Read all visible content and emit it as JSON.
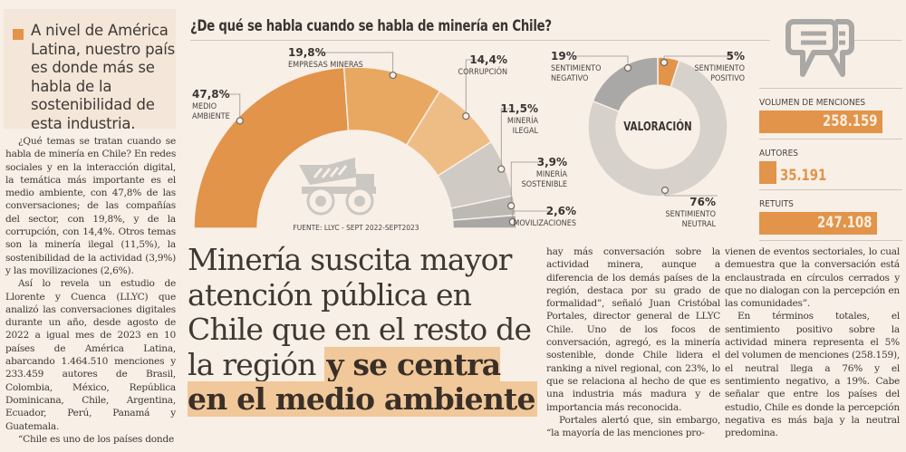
{
  "callout": {
    "text": "A nivel de América Latina, nuestro país es donde más se habla de la sostenibilidad de esta industria."
  },
  "article": {
    "left_paragraphs": [
      "¿Qué temas se tratan cuando se habla de minería en Chile? En redes sociales y en la interacción digital, la temática más importante es el medio ambiente, con 47,8% de las conversaciones; de las compañías del sector, con 19,8%, y de la corrupción, con 14,4%. Otros temas son la minería ilegal (11,5%), la sostenibilidad de la actividad (3,9%) y las movilizaciones (2,6%).",
      "Así lo revela un estudio de Llorente y Cuenca (LLYC) que analizó las conversaciones digitales durante un año, desde agosto de 2022 a igual mes de 2023 en 10 países de América Latina, abarcando 1.464.510 menciones y 233.459 autores de Brasil, Colombia, México, República Dominicana, Chile, Argentina, Ecuador, Perú, Panamá y Guatemala.",
      "“Chile es uno de los países donde"
    ],
    "mid_paragraphs": [
      "hay más conversación sobre la actividad minera, aunque a diferencia de los demás países de la región, destaca por su grado de formalidad”, señaló Juan Cristóbal Portales, director general de LLYC Chile. Uno de los focos de conversación, agregó, es la minería sostenible, donde Chile lidera el ranking a nivel regional, con 23%, lo que se relaciona al hecho de que es una industria más madura y de importancia más reconocida.",
      "Portales alertó que, sin embargo, “la mayoría de las menciones pro-"
    ],
    "right_paragraphs": [
      "vienen de eventos sectoriales, lo cual demuestra que la conversación está enclaustrada en círculos cerrados y que no dialogan con la percepción en las comunidades”.",
      "En términos totales, el sentimiento positivo sobre la actividad minera representa el 5% del volumen de menciones (258.159), el neutral llega a 76% y el sentimiento negativo, a 19%. Cabe señalar que entre los países del estudio, Chile es donde la percepción negativa es más baja y la neutral predomina."
    ]
  },
  "headline": {
    "plain": "Minería suscita mayor atención pública en Chile que en el resto de la región ",
    "highlight": "y se centra en el medio ambiente"
  },
  "chart_data": [
    {
      "type": "pie",
      "variant": "half-donut",
      "title": "¿De qué se habla cuando se habla de minería en Chile?",
      "source": "FUENTE: LLYC - SEPT 2022-SEPT2023",
      "center_icon": "mining-truck-icon",
      "categories": [
        "MEDIO AMBIENTE",
        "EMPRESAS MINERAS",
        "CORRUPCIÓN",
        "MINERÍA ILEGAL",
        "MINERÍA SOSTENIBLE",
        "MOVILIZACIONES"
      ],
      "values": [
        47.8,
        19.8,
        14.4,
        11.5,
        3.9,
        2.6
      ],
      "value_labels": [
        "47,8%",
        "19,8%",
        "14,4%",
        "11,5%",
        "3,9%",
        "2,6%"
      ],
      "label_lines": [
        [
          "MEDIO",
          "AMBIENTE"
        ],
        [
          "EMPRESAS MINERAS"
        ],
        [
          "CORRUPCIÓN"
        ],
        [
          "MINERÍA",
          "ILEGAL"
        ],
        [
          "MINERÍA",
          "SOSTENIBLE"
        ],
        [
          "MOVILIZACIONES"
        ]
      ],
      "colors": [
        "#e1944a",
        "#e8a862",
        "#eebd86",
        "#cfcac3",
        "#bcb8b3",
        "#a9a7a5"
      ]
    },
    {
      "type": "pie",
      "variant": "donut",
      "title": "VALORACIÓN",
      "categories": [
        "SENTIMIENTO POSITIVO",
        "SENTIMIENTO NEUTRAL",
        "SENTIMIENTO NEGATIVO"
      ],
      "values": [
        5,
        76,
        19
      ],
      "value_labels": [
        "5%",
        "76%",
        "19%"
      ],
      "label_lines": [
        [
          "SENTIMIENTO",
          "POSITIVO"
        ],
        [
          "SENTIMIENTO",
          "NEUTRAL"
        ],
        [
          "SENTIMIENTO",
          "NEGATIVO"
        ]
      ],
      "colors": [
        "#e1944a",
        "#d6d1cb",
        "#a9a8a6"
      ]
    },
    {
      "type": "bar",
      "orientation": "horizontal",
      "icon": "chat-bubbles-icon",
      "categories": [
        "VOLUMEN DE MENCIONES",
        "AUTORES",
        "RETUITS"
      ],
      "values": [
        258159,
        35191,
        247108
      ],
      "value_labels": [
        "258.159",
        "35.191",
        "247.108"
      ],
      "color": "#e1944a"
    }
  ]
}
